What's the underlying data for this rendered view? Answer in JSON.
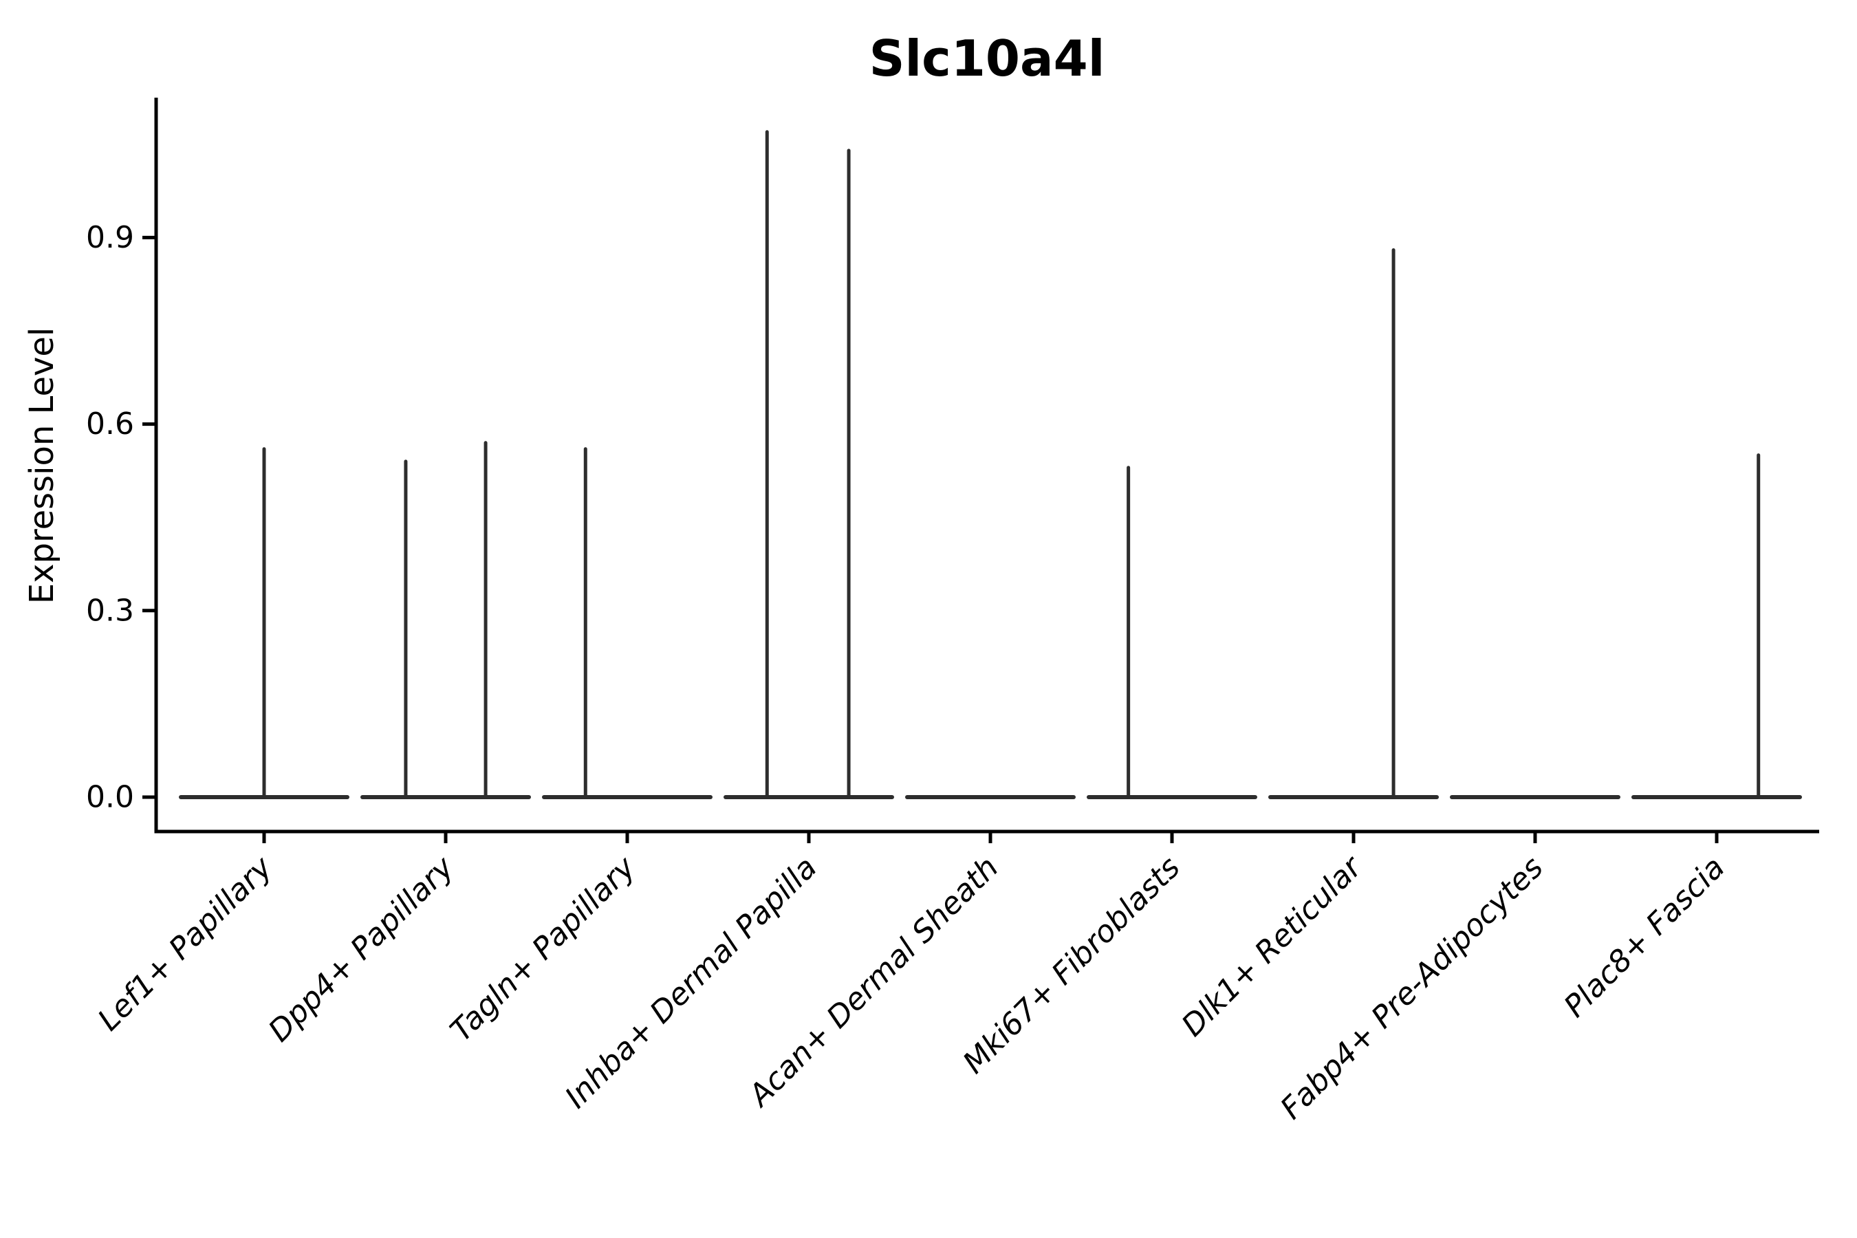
{
  "chart_data": {
    "type": "violin",
    "title": "Slc10a4l",
    "ylabel": "Expression Level",
    "xlabel": "",
    "ylim": [
      -0.06,
      1.12
    ],
    "yticks": [
      0,
      0.3,
      0.6,
      0.9
    ],
    "ytick_labels": [
      "0.0",
      "0.3",
      "0.6",
      "0.9"
    ],
    "grid": false,
    "legend": "none",
    "x_label_style": "italic, rotated 45deg, anchored at tick",
    "categories": [
      "Lef1+ Papillary",
      "Dpp4+ Papillary",
      "Tagln+ Papillary",
      "Inhba+ Dermal Papilla",
      "Acan+ Dermal Sheath",
      "Mki67+ Fibroblasts",
      "Dlk1+ Reticular",
      "Fabp4+ Pre-Adipocytes",
      "Plac8+ Fascia"
    ],
    "series": [
      {
        "name": "Lef1+ Papillary",
        "baseline_value": 0.0,
        "spikes": [
          {
            "offset": 0.0,
            "value": 0.56
          }
        ]
      },
      {
        "name": "Dpp4+ Papillary",
        "baseline_value": 0.0,
        "spikes": [
          {
            "offset": -0.22,
            "value": 0.54
          },
          {
            "offset": 0.22,
            "value": 0.57
          }
        ]
      },
      {
        "name": "Tagln+ Papillary",
        "baseline_value": 0.0,
        "spikes": [
          {
            "offset": -0.23,
            "value": 0.56
          }
        ]
      },
      {
        "name": "Inhba+ Dermal Papilla",
        "baseline_value": 0.0,
        "spikes": [
          {
            "offset": -0.23,
            "value": 1.07
          },
          {
            "offset": 0.22,
            "value": 1.04
          }
        ]
      },
      {
        "name": "Acan+ Dermal Sheath",
        "baseline_value": 0.0,
        "spikes": []
      },
      {
        "name": "Mki67+ Fibroblasts",
        "baseline_value": 0.0,
        "spikes": [
          {
            "offset": -0.24,
            "value": 0.53
          }
        ]
      },
      {
        "name": "Dlk1+ Reticular",
        "baseline_value": 0.0,
        "spikes": [
          {
            "offset": 0.22,
            "value": 0.88
          }
        ]
      },
      {
        "name": "Fabp4+ Pre-Adipocytes",
        "baseline_value": 0.0,
        "spikes": []
      },
      {
        "name": "Plac8+ Fascia",
        "baseline_value": 0.0,
        "spikes": [
          {
            "offset": 0.23,
            "value": 0.55
          }
        ]
      }
    ],
    "colors": {
      "violin_stroke": "#2d2d2d",
      "axis": "#000000",
      "text": "#000000",
      "background": "#ffffff"
    }
  }
}
